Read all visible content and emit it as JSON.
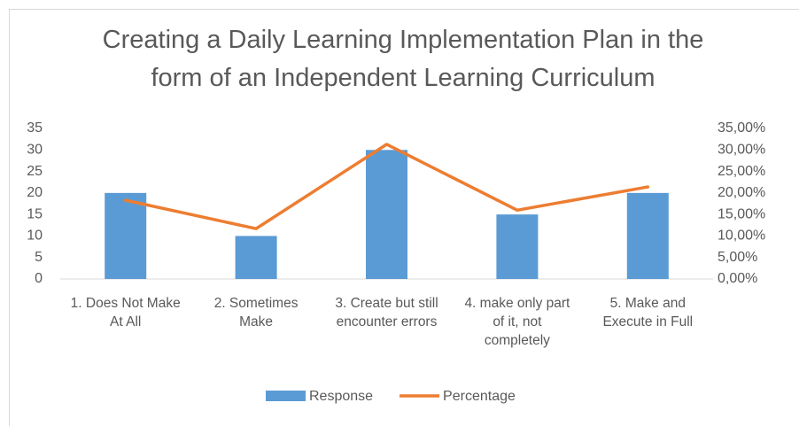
{
  "chart_data": {
    "type": "bar_line",
    "title": "Creating a Daily Learning Implementation Plan in the form of an Independent Learning Curriculum",
    "categories": [
      "1. Does Not Make At All",
      "2. Sometimes Make",
      "3. Create but still encounter errors",
      "4. make only part of it, not completely",
      "5. Make and Execute in Full"
    ],
    "series": [
      {
        "name": "Response",
        "color": "#5b9bd5",
        "type": "bar",
        "values": [
          20,
          10,
          30,
          15,
          20
        ]
      },
      {
        "name": "Percentage",
        "color": "#ed7d31",
        "type": "line",
        "axis": "y2",
        "values": [
          18.3,
          11.7,
          31.3,
          16,
          21.4
        ]
      }
    ],
    "ylim": [
      0,
      35
    ],
    "yticks": [
      0,
      5,
      10,
      15,
      20,
      25,
      30,
      35
    ],
    "y2lim": [
      0,
      35
    ],
    "y2ticks": [
      {
        "value": 0,
        "label": "0,00%"
      },
      {
        "value": 5,
        "label": "5,00%"
      },
      {
        "value": 10,
        "label": "10,00%"
      },
      {
        "value": 15,
        "label": "15,00%"
      },
      {
        "value": 20,
        "label": "20,00%"
      },
      {
        "value": 25,
        "label": "25,00%"
      },
      {
        "value": 30,
        "label": "30,00%"
      },
      {
        "value": 35,
        "label": "35,00%"
      }
    ],
    "grid": false,
    "legend": "bottom"
  }
}
